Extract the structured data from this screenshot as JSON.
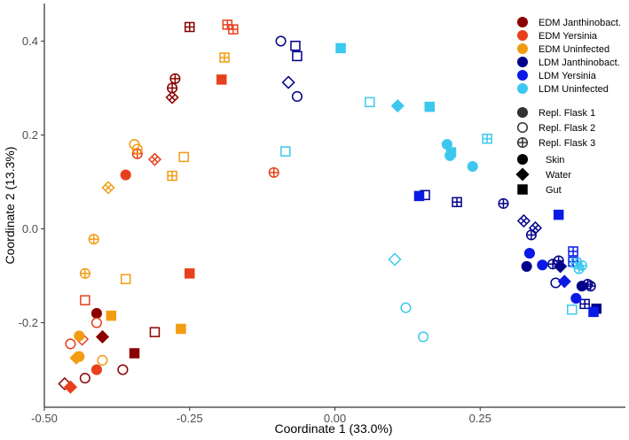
{
  "chart_data": {
    "type": "scatter",
    "title": "",
    "xlabel": "Coordinate 1 (33.0%)",
    "ylabel": "Coordinate 2 (13.3%)",
    "xlim": [
      -0.5,
      0.5
    ],
    "ylim": [
      -0.38,
      0.48
    ],
    "x_ticks": [
      {
        "value": -0.5,
        "label": "-0.50"
      },
      {
        "value": -0.25,
        "label": "-0.25"
      },
      {
        "value": 0.0,
        "label": "0.00"
      },
      {
        "value": 0.25,
        "label": "0.25"
      }
    ],
    "y_ticks": [
      {
        "value": -0.2,
        "label": "-0.2"
      },
      {
        "value": 0.0,
        "label": "0.0"
      },
      {
        "value": 0.2,
        "label": "0.2"
      },
      {
        "value": 0.4,
        "label": "0.4"
      }
    ],
    "groups": [
      {
        "key": "EDM_J",
        "name": "EDM Janthinobact.",
        "color": "#8B0000"
      },
      {
        "key": "EDM_Y",
        "name": "EDM Yersinia",
        "color": "#E8401C"
      },
      {
        "key": "EDM_U",
        "name": "EDM Uninfected",
        "color": "#F39C12"
      },
      {
        "key": "LDM_J",
        "name": "LDM Janthinobact.",
        "color": "#00008B"
      },
      {
        "key": "LDM_Y",
        "name": "LDM Yersinia",
        "color": "#0A1AE6"
      },
      {
        "key": "LDM_U",
        "name": "LDM Uninfected",
        "color": "#3CC8EE"
      }
    ],
    "flask_legend": [
      {
        "name": "Repl. Flask 1",
        "style": "filled"
      },
      {
        "name": "Repl. Flask 2",
        "style": "open"
      },
      {
        "name": "Repl. Flask 3",
        "style": "cross"
      }
    ],
    "tissue_legend": [
      {
        "name": "Skin",
        "shape": "circle"
      },
      {
        "name": "Water",
        "shape": "diamond"
      },
      {
        "name": "Gut",
        "shape": "square"
      }
    ],
    "points": [
      {
        "g": "EDM_J",
        "shape": "square",
        "style": "cross",
        "x": -0.25,
        "y": 0.43
      },
      {
        "g": "EDM_J",
        "shape": "circle",
        "style": "cross",
        "x": -0.275,
        "y": 0.32
      },
      {
        "g": "EDM_J",
        "shape": "circle",
        "style": "cross",
        "x": -0.28,
        "y": 0.3
      },
      {
        "g": "EDM_J",
        "shape": "diamond",
        "style": "cross",
        "x": -0.28,
        "y": 0.28
      },
      {
        "g": "EDM_J",
        "shape": "circle",
        "style": "filled",
        "x": -0.41,
        "y": -0.18
      },
      {
        "g": "EDM_J",
        "shape": "diamond",
        "style": "filled",
        "x": -0.4,
        "y": -0.23
      },
      {
        "g": "EDM_J",
        "shape": "square",
        "style": "open",
        "x": -0.31,
        "y": -0.22
      },
      {
        "g": "EDM_J",
        "shape": "square",
        "style": "filled",
        "x": -0.345,
        "y": -0.265
      },
      {
        "g": "EDM_J",
        "shape": "circle",
        "style": "open",
        "x": -0.365,
        "y": -0.3
      },
      {
        "g": "EDM_J",
        "shape": "circle",
        "style": "open",
        "x": -0.43,
        "y": -0.318
      },
      {
        "g": "EDM_J",
        "shape": "diamond",
        "style": "open",
        "x": -0.465,
        "y": -0.33
      },
      {
        "g": "EDM_Y",
        "shape": "square",
        "style": "cross",
        "x": -0.185,
        "y": 0.435
      },
      {
        "g": "EDM_Y",
        "shape": "square",
        "style": "cross",
        "x": -0.175,
        "y": 0.425
      },
      {
        "g": "EDM_Y",
        "shape": "square",
        "style": "filled",
        "x": -0.195,
        "y": 0.318
      },
      {
        "g": "EDM_Y",
        "shape": "diamond",
        "style": "cross",
        "x": -0.31,
        "y": 0.148
      },
      {
        "g": "EDM_Y",
        "shape": "circle",
        "style": "cross",
        "x": -0.34,
        "y": 0.16
      },
      {
        "g": "EDM_Y",
        "shape": "circle",
        "style": "filled",
        "x": -0.36,
        "y": 0.115
      },
      {
        "g": "EDM_Y",
        "shape": "circle",
        "style": "cross",
        "x": -0.105,
        "y": 0.12
      },
      {
        "g": "EDM_Y",
        "shape": "square",
        "style": "filled",
        "x": -0.25,
        "y": -0.095
      },
      {
        "g": "EDM_Y",
        "shape": "square",
        "style": "open",
        "x": -0.43,
        "y": -0.152
      },
      {
        "g": "EDM_Y",
        "shape": "circle",
        "style": "open",
        "x": -0.41,
        "y": -0.2
      },
      {
        "g": "EDM_Y",
        "shape": "diamond",
        "style": "open",
        "x": -0.435,
        "y": -0.235
      },
      {
        "g": "EDM_Y",
        "shape": "circle",
        "style": "open",
        "x": -0.455,
        "y": -0.245
      },
      {
        "g": "EDM_Y",
        "shape": "circle",
        "style": "filled",
        "x": -0.41,
        "y": -0.3
      },
      {
        "g": "EDM_Y",
        "shape": "diamond",
        "style": "filled",
        "x": -0.455,
        "y": -0.337
      },
      {
        "g": "EDM_U",
        "shape": "square",
        "style": "cross",
        "x": -0.19,
        "y": 0.365
      },
      {
        "g": "EDM_U",
        "shape": "circle",
        "style": "open",
        "x": -0.345,
        "y": 0.18
      },
      {
        "g": "EDM_U",
        "shape": "circle",
        "style": "open",
        "x": -0.34,
        "y": 0.17
      },
      {
        "g": "EDM_U",
        "shape": "square",
        "style": "open",
        "x": -0.26,
        "y": 0.153
      },
      {
        "g": "EDM_U",
        "shape": "square",
        "style": "cross",
        "x": -0.28,
        "y": 0.113
      },
      {
        "g": "EDM_U",
        "shape": "diamond",
        "style": "cross",
        "x": -0.39,
        "y": 0.088
      },
      {
        "g": "EDM_U",
        "shape": "circle",
        "style": "cross",
        "x": -0.415,
        "y": -0.022
      },
      {
        "g": "EDM_U",
        "shape": "circle",
        "style": "cross",
        "x": -0.43,
        "y": -0.095
      },
      {
        "g": "EDM_U",
        "shape": "square",
        "style": "open",
        "x": -0.36,
        "y": -0.107
      },
      {
        "g": "EDM_U",
        "shape": "square",
        "style": "filled",
        "x": -0.385,
        "y": -0.185
      },
      {
        "g": "EDM_U",
        "shape": "square",
        "style": "filled",
        "x": -0.265,
        "y": -0.213
      },
      {
        "g": "EDM_U",
        "shape": "circle",
        "style": "filled",
        "x": -0.44,
        "y": -0.228
      },
      {
        "g": "EDM_U",
        "shape": "circle",
        "style": "filled",
        "x": -0.44,
        "y": -0.272
      },
      {
        "g": "EDM_U",
        "shape": "diamond",
        "style": "filled",
        "x": -0.445,
        "y": -0.275
      },
      {
        "g": "EDM_U",
        "shape": "circle",
        "style": "open",
        "x": -0.4,
        "y": -0.28
      },
      {
        "g": "LDM_J",
        "shape": "circle",
        "style": "open",
        "x": -0.093,
        "y": 0.4
      },
      {
        "g": "LDM_J",
        "shape": "square",
        "style": "open",
        "x": -0.068,
        "y": 0.39
      },
      {
        "g": "LDM_J",
        "shape": "square",
        "style": "open",
        "x": -0.065,
        "y": 0.368
      },
      {
        "g": "LDM_J",
        "shape": "diamond",
        "style": "open",
        "x": -0.08,
        "y": 0.312
      },
      {
        "g": "LDM_J",
        "shape": "circle",
        "style": "open",
        "x": -0.065,
        "y": 0.282
      },
      {
        "g": "LDM_J",
        "shape": "square",
        "style": "open",
        "x": 0.155,
        "y": 0.072
      },
      {
        "g": "LDM_J",
        "shape": "square",
        "style": "cross",
        "x": 0.21,
        "y": 0.057
      },
      {
        "g": "LDM_J",
        "shape": "circle",
        "style": "cross",
        "x": 0.29,
        "y": 0.054
      },
      {
        "g": "LDM_J",
        "shape": "diamond",
        "style": "cross",
        "x": 0.325,
        "y": 0.017
      },
      {
        "g": "LDM_J",
        "shape": "diamond",
        "style": "cross",
        "x": 0.345,
        "y": 0.002
      },
      {
        "g": "LDM_J",
        "shape": "circle",
        "style": "cross",
        "x": 0.338,
        "y": -0.013
      },
      {
        "g": "LDM_J",
        "shape": "circle",
        "style": "filled",
        "x": 0.33,
        "y": -0.08
      },
      {
        "g": "LDM_J",
        "shape": "circle",
        "style": "cross",
        "x": 0.385,
        "y": -0.068
      },
      {
        "g": "LDM_J",
        "shape": "circle",
        "style": "cross",
        "x": 0.375,
        "y": -0.075
      },
      {
        "g": "LDM_J",
        "shape": "diamond",
        "style": "filled",
        "x": 0.388,
        "y": -0.08
      },
      {
        "g": "LDM_J",
        "shape": "circle",
        "style": "open",
        "x": 0.38,
        "y": -0.115
      },
      {
        "g": "LDM_J",
        "shape": "circle",
        "style": "filled",
        "x": 0.425,
        "y": -0.122
      },
      {
        "g": "LDM_J",
        "shape": "circle",
        "style": "cross",
        "x": 0.435,
        "y": -0.118
      },
      {
        "g": "LDM_J",
        "shape": "circle",
        "style": "cross",
        "x": 0.44,
        "y": -0.122
      },
      {
        "g": "LDM_J",
        "shape": "square",
        "style": "cross",
        "x": 0.43,
        "y": -0.16
      },
      {
        "g": "LDM_J",
        "shape": "square",
        "style": "filled",
        "x": 0.45,
        "y": -0.17
      },
      {
        "g": "LDM_Y",
        "shape": "square",
        "style": "filled",
        "x": 0.145,
        "y": 0.07
      },
      {
        "g": "LDM_Y",
        "shape": "square",
        "style": "filled",
        "x": 0.385,
        "y": 0.03
      },
      {
        "g": "LDM_Y",
        "shape": "circle",
        "style": "filled",
        "x": 0.335,
        "y": -0.052
      },
      {
        "g": "LDM_Y",
        "shape": "circle",
        "style": "filled",
        "x": 0.357,
        "y": -0.077
      },
      {
        "g": "LDM_Y",
        "shape": "square",
        "style": "cross",
        "x": 0.41,
        "y": -0.048
      },
      {
        "g": "LDM_Y",
        "shape": "square",
        "style": "cross",
        "x": 0.41,
        "y": -0.07
      },
      {
        "g": "LDM_Y",
        "shape": "diamond",
        "style": "filled",
        "x": 0.395,
        "y": -0.112
      },
      {
        "g": "LDM_Y",
        "shape": "circle",
        "style": "filled",
        "x": 0.415,
        "y": -0.148
      },
      {
        "g": "LDM_Y",
        "shape": "square",
        "style": "filled",
        "x": 0.445,
        "y": -0.177
      },
      {
        "g": "LDM_U",
        "shape": "square",
        "style": "filled",
        "x": 0.01,
        "y": 0.385
      },
      {
        "g": "LDM_U",
        "shape": "square",
        "style": "open",
        "x": 0.06,
        "y": 0.27
      },
      {
        "g": "LDM_U",
        "shape": "diamond",
        "style": "filled",
        "x": 0.108,
        "y": 0.262
      },
      {
        "g": "LDM_U",
        "shape": "square",
        "style": "filled",
        "x": 0.163,
        "y": 0.26
      },
      {
        "g": "LDM_U",
        "shape": "square",
        "style": "cross",
        "x": 0.262,
        "y": 0.192
      },
      {
        "g": "LDM_U",
        "shape": "circle",
        "style": "filled",
        "x": 0.193,
        "y": 0.18
      },
      {
        "g": "LDM_U",
        "shape": "square",
        "style": "filled",
        "x": 0.2,
        "y": 0.163
      },
      {
        "g": "LDM_U",
        "shape": "circle",
        "style": "filled",
        "x": 0.198,
        "y": 0.156
      },
      {
        "g": "LDM_U",
        "shape": "circle",
        "style": "filled",
        "x": 0.237,
        "y": 0.133
      },
      {
        "g": "LDM_U",
        "shape": "square",
        "style": "open",
        "x": -0.085,
        "y": 0.165
      },
      {
        "g": "LDM_U",
        "shape": "diamond",
        "style": "open",
        "x": 0.103,
        "y": -0.065
      },
      {
        "g": "LDM_U",
        "shape": "square",
        "style": "cross",
        "x": 0.415,
        "y": -0.072
      },
      {
        "g": "LDM_U",
        "shape": "circle",
        "style": "cross",
        "x": 0.425,
        "y": -0.078
      },
      {
        "g": "LDM_U",
        "shape": "circle",
        "style": "cross",
        "x": 0.42,
        "y": -0.085
      },
      {
        "g": "LDM_U",
        "shape": "square",
        "style": "open",
        "x": 0.408,
        "y": -0.172
      },
      {
        "g": "LDM_U",
        "shape": "circle",
        "style": "open",
        "x": 0.122,
        "y": -0.168
      },
      {
        "g": "LDM_U",
        "shape": "circle",
        "style": "open",
        "x": 0.152,
        "y": -0.23
      }
    ]
  }
}
